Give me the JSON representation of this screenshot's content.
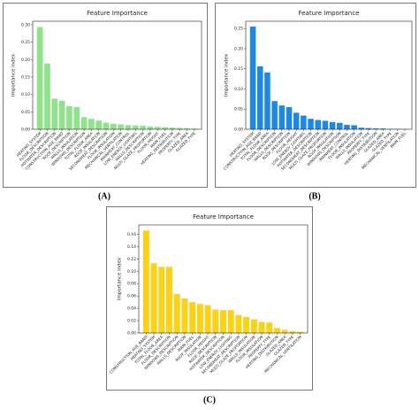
{
  "chart_data": [
    {
      "type": "bar",
      "title": "Feature Importance",
      "y_label": "Importance index",
      "caption": "(A)",
      "color": "#8fe38a",
      "categories": [
        "HEATING_SYSTEM",
        "FLOOR_DESCRIPTION",
        "HOTWATER_DESCRIPTION",
        "CONSTRUCTION_AGE_BAND",
        "ROOF_DESCRIPTION",
        "WALLS_INSULATION",
        "WINDOWS_DESCRIPTION",
        "TOTAL_FLOOR_AREA",
        "ROOF_INSULATION",
        "SECONDHEAT_DESCRIPTION",
        "FLOOR_INSULATION",
        "MECHANICAL_VENTILATION",
        "MAINHEAT_CONTROL",
        "LOW_ENERGY_LIGHTING",
        "WALLS_DESCRIPTION",
        "MULTI_GLAZE_PROPORTION",
        "FLOOR_HEIGHT",
        "MAIN_FUEL",
        "HEATING_DISTRIBUTION",
        "PROPERTY_TYPE",
        "GLAZED_AREA",
        "GLAZED_TYPE"
      ],
      "values": [
        0.293,
        0.189,
        0.088,
        0.082,
        0.066,
        0.064,
        0.035,
        0.03,
        0.025,
        0.019,
        0.016,
        0.014,
        0.012,
        0.011,
        0.01,
        0.008,
        0.007,
        0.006,
        0.005,
        0.004,
        0.003,
        0.002
      ],
      "ylim": [
        0,
        0.31
      ],
      "yticks": [
        {
          "value": 0,
          "label": "0.00"
        },
        {
          "value": 0.05,
          "label": "0.05"
        },
        {
          "value": 0.1,
          "label": "0.10"
        },
        {
          "value": 0.15,
          "label": "0.15"
        },
        {
          "value": 0.2,
          "label": "0.20"
        },
        {
          "value": 0.25,
          "label": "0.25"
        },
        {
          "value": 0.3,
          "label": "0.30"
        }
      ]
    },
    {
      "type": "bar",
      "title": "Feature Importance",
      "y_label": "Importance index",
      "caption": "(B)",
      "color": "#1e88e5",
      "categories": [
        "HEATING_SYSTEM",
        "CONSTRUCTION_AGE_BAND",
        "TOTAL_FLOOR_AREA",
        "FLOOR_DESCRIPTION",
        "WALLS_DESCRIPTION",
        "ROOF_DESCRIPTION",
        "FLOOR_HEIGHT",
        "LOW_ENERGY_LIGHTING",
        "HOTWATER_DESCRIPTION",
        "SECONDHEAT_DESCRIPTION",
        "MULTI_GLAZE_PROPORTION",
        "ROOF_INSULATION",
        "WINDOWS_DESCRIPTION",
        "MAINHEAT_CONTROL",
        "FLOOR_INSULATION",
        "WALLS_INSULATION",
        "PROPERTY_TYPE",
        "HEATING_DISTRIBUTION",
        "GLAZED_AREA",
        "GLAZED_TYPE",
        "MECHANICAL_VENTILATION",
        "MAIN_FUEL"
      ],
      "values": [
        0.255,
        0.156,
        0.141,
        0.07,
        0.059,
        0.055,
        0.041,
        0.034,
        0.026,
        0.023,
        0.021,
        0.018,
        0.016,
        0.011,
        0.01,
        0.004,
        0.003,
        0.002,
        0.002,
        0.001,
        0.001,
        0.0005
      ],
      "ylim": [
        0,
        0.268
      ],
      "yticks": [
        {
          "value": 0,
          "label": "0.00"
        },
        {
          "value": 0.05,
          "label": "0.05"
        },
        {
          "value": 0.1,
          "label": "0.10"
        },
        {
          "value": 0.15,
          "label": "0.15"
        },
        {
          "value": 0.2,
          "label": "0.20"
        },
        {
          "value": 0.25,
          "label": "0.25"
        }
      ]
    },
    {
      "type": "bar",
      "title": "Feature Importance",
      "y_label": "Importance index",
      "caption": "(C)",
      "color": "#fcd116",
      "categories": [
        "CONSTRUCTION_AGE_BAND",
        "HEATING_SYSTEM",
        "TOTAL_FLOOR_AREA",
        "FLOOR_DESCRIPTION",
        "WINDOWS_DESCRIPTION",
        "WALLS_DESCRIPTION",
        "MAIN_FUEL",
        "ROOF_INSULATION",
        "FLOOR_HEIGHT",
        "ROOF_DESCRIPTION",
        "HOTWATER_DESCRIPTION",
        "LOW_ENERGY_LIGHTING",
        "SECONDHEAT_DESCRIPTION",
        "MULTI_GLAZE_PROPORTION",
        "WALLS_INSULATION",
        "FLOOR_INSULATION",
        "PROPERTY_TYPE",
        "HEATING_DISTRIBUTION",
        "GLAZED_AREA",
        "GLAZED_TYPE",
        "MECHANICAL_VENTILATION"
      ],
      "values": [
        0.166,
        0.113,
        0.107,
        0.107,
        0.063,
        0.056,
        0.05,
        0.047,
        0.045,
        0.038,
        0.037,
        0.037,
        0.029,
        0.026,
        0.022,
        0.018,
        0.017,
        0.008,
        0.005,
        0.003,
        0.002
      ],
      "ylim": [
        0,
        0.175
      ],
      "yticks": [
        {
          "value": 0,
          "label": "0.00"
        },
        {
          "value": 0.02,
          "label": "0.02"
        },
        {
          "value": 0.04,
          "label": "0.04"
        },
        {
          "value": 0.06,
          "label": "0.06"
        },
        {
          "value": 0.08,
          "label": "0.08"
        },
        {
          "value": 0.1,
          "label": "0.10"
        },
        {
          "value": 0.12,
          "label": "0.12"
        },
        {
          "value": 0.14,
          "label": "0.14"
        },
        {
          "value": 0.16,
          "label": "0.16"
        }
      ]
    }
  ]
}
